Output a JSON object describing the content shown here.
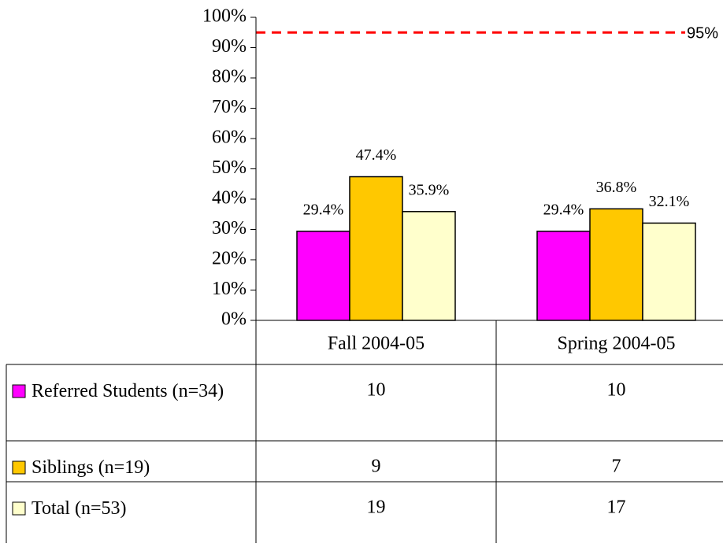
{
  "chart_data": {
    "type": "bar",
    "categories": [
      "Fall 2004-05",
      "Spring 2004-05"
    ],
    "series": [
      {
        "name": "Referred Students (n=34)",
        "color": "#ff00ff",
        "values": [
          29.4,
          29.4
        ],
        "value_labels": [
          "29.4%",
          "29.4%"
        ],
        "counts": [
          10,
          10
        ]
      },
      {
        "name": "Siblings (n=19)",
        "color": "#ffc800",
        "values": [
          47.4,
          36.8
        ],
        "value_labels": [
          "47.4%",
          "36.8%"
        ],
        "counts": [
          9,
          7
        ]
      },
      {
        "name": "Total (n=53)",
        "color": "#ffffcc",
        "values": [
          35.9,
          32.1
        ],
        "value_labels": [
          "35.9%",
          "32.1%"
        ],
        "counts": [
          19,
          17
        ]
      }
    ],
    "ylim": [
      0,
      100
    ],
    "yticks": [
      {
        "value": 0,
        "label": "0%"
      },
      {
        "value": 10,
        "label": "10%"
      },
      {
        "value": 20,
        "label": "20%"
      },
      {
        "value": 30,
        "label": "30%"
      },
      {
        "value": 40,
        "label": "40%"
      },
      {
        "value": 50,
        "label": "50%"
      },
      {
        "value": 60,
        "label": "60%"
      },
      {
        "value": 70,
        "label": "70%"
      },
      {
        "value": 80,
        "label": "80%"
      },
      {
        "value": 90,
        "label": "90%"
      },
      {
        "value": 100,
        "label": "100%"
      }
    ],
    "grid": false,
    "reference_line": {
      "value": 95,
      "label": "95%",
      "color": "#ff0000"
    }
  }
}
